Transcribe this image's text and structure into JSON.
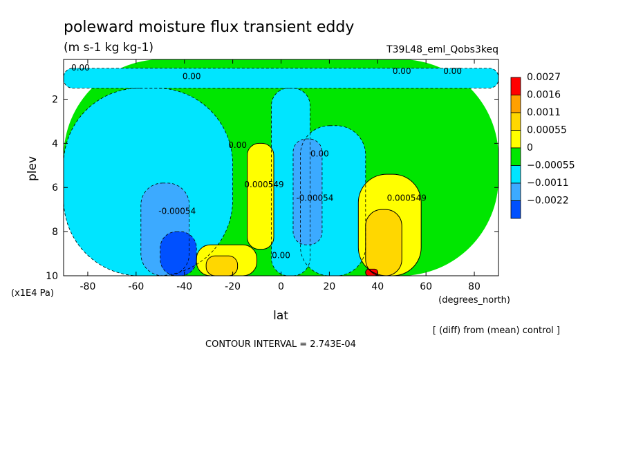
{
  "chart_data": {
    "type": "heatmap",
    "title": "poleward moisture flux transient eddy",
    "subtitle": "(m s-1 kg kg-1)",
    "run_label": "T39L48_eml_Qobs3keq",
    "xlabel": "lat",
    "x_units": "(degrees_north)",
    "ylabel": "plev",
    "y_units": "(x1E4 Pa)",
    "xlim": [
      -90,
      90
    ],
    "ylim": [
      10,
      0.2
    ],
    "x_ticks": [
      "-80",
      "-60",
      "-40",
      "-20",
      "0",
      "20",
      "40",
      "60",
      "80"
    ],
    "y_ticks": [
      "2",
      "4",
      "6",
      "8",
      "10"
    ],
    "note": "[ (diff) from (mean) control ]",
    "contour_interval": "CONTOUR INTERVAL = 2.743E-04",
    "colorbar": [
      {
        "label": "0.0027",
        "color": "#ff0000"
      },
      {
        "label": "0.0016",
        "color": "#ffa000"
      },
      {
        "label": "0.0011",
        "color": "#ffd700"
      },
      {
        "label": "0.00055",
        "color": "#ffff00"
      },
      {
        "label": "0",
        "color": "#00e600"
      },
      {
        "label": "−0.00055",
        "color": "#00e5ff"
      },
      {
        "label": "−0.0011",
        "color": "#3caaff"
      },
      {
        "label": "−0.0022",
        "color": "#0050ff"
      }
    ],
    "contour_labels": [
      {
        "text": "0.00",
        "lat": -83,
        "plev": 0.7
      },
      {
        "text": "0.00",
        "lat": -37,
        "plev": 1.1
      },
      {
        "text": "0.00",
        "lat": 50,
        "plev": 0.85
      },
      {
        "text": "0.00",
        "lat": 71,
        "plev": 0.85
      },
      {
        "text": "0.00",
        "lat": -18,
        "plev": 4.2
      },
      {
        "text": "0.000549",
        "lat": -7,
        "plev": 6.0
      },
      {
        "text": "-0.00054",
        "lat": -43,
        "plev": 7.2
      },
      {
        "text": "0.00",
        "lat": 16,
        "plev": 4.6
      },
      {
        "text": "-0.00054",
        "lat": 14,
        "plev": 6.6
      },
      {
        "text": "0.000549",
        "lat": 52,
        "plev": 6.6
      },
      {
        "text": "0.00",
        "lat": 0,
        "plev": 9.2
      }
    ],
    "regions": [
      {
        "level": "0",
        "lat": [
          -90,
          90
        ],
        "plev": [
          0.2,
          10
        ]
      },
      {
        "level": "-0.00055",
        "lat": [
          -90,
          90
        ],
        "plev": [
          0.6,
          1.5
        ]
      },
      {
        "level": "-0.00055",
        "lat": [
          -90,
          -20
        ],
        "plev": [
          1.5,
          10
        ]
      },
      {
        "level": "-0.00055",
        "lat": [
          -4,
          12
        ],
        "plev": [
          1.5,
          10
        ]
      },
      {
        "level": "-0.00055",
        "lat": [
          8,
          35
        ],
        "plev": [
          3.2,
          10
        ]
      },
      {
        "level": "-0.0011",
        "lat": [
          -58,
          -38
        ],
        "plev": [
          5.8,
          10
        ]
      },
      {
        "level": "-0.0022",
        "lat": [
          -50,
          -35
        ],
        "plev": [
          8.0,
          10
        ]
      },
      {
        "level": "-0.0011",
        "lat": [
          5,
          17
        ],
        "plev": [
          3.8,
          8.6
        ]
      },
      {
        "level": "0.00055",
        "lat": [
          -14,
          -3
        ],
        "plev": [
          4.0,
          8.8
        ]
      },
      {
        "level": "0.00055",
        "lat": [
          -35,
          -10
        ],
        "plev": [
          8.6,
          10
        ]
      },
      {
        "level": "0.0011",
        "lat": [
          -31,
          -18
        ],
        "plev": [
          9.1,
          10
        ]
      },
      {
        "level": "0.00055",
        "lat": [
          32,
          58
        ],
        "plev": [
          5.4,
          10
        ]
      },
      {
        "level": "0.0011",
        "lat": [
          35,
          50
        ],
        "plev": [
          7.0,
          10
        ]
      },
      {
        "level": "0.0027",
        "lat": [
          35,
          40
        ],
        "plev": [
          9.7,
          10
        ]
      }
    ]
  }
}
